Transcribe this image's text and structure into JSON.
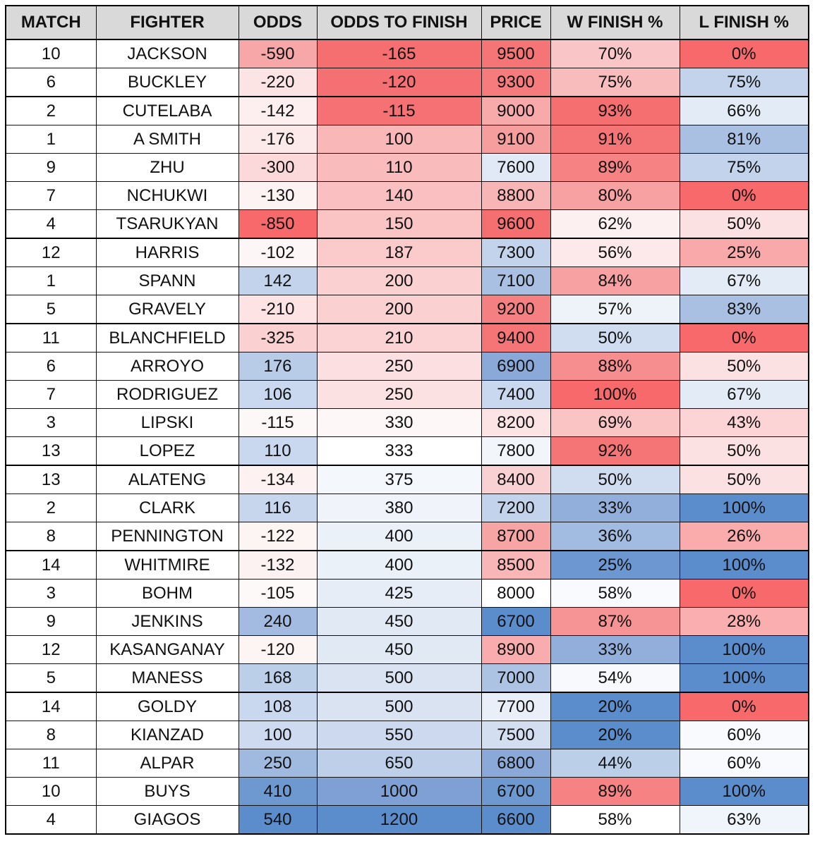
{
  "table": {
    "columns": [
      "MATCH",
      "FIGHTER",
      "ODDS",
      "ODDS TO FINISH",
      "PRICE",
      "W FINISH %",
      "L FINISH %"
    ],
    "rows": [
      [
        "10",
        "JACKSON",
        "-590",
        "-165",
        "9500",
        "70%",
        "0%"
      ],
      [
        "6",
        "BUCKLEY",
        "-220",
        "-120",
        "9300",
        "75%",
        "75%"
      ],
      [
        "2",
        "CUTELABA",
        "-142",
        "-115",
        "9000",
        "93%",
        "66%"
      ],
      [
        "1",
        "A SMITH",
        "-176",
        "100",
        "9100",
        "91%",
        "81%"
      ],
      [
        "9",
        "ZHU",
        "-300",
        "110",
        "7600",
        "89%",
        "75%"
      ],
      [
        "7",
        "NCHUKWI",
        "-130",
        "140",
        "8800",
        "80%",
        "0%"
      ],
      [
        "4",
        "TSARUKYAN",
        "-850",
        "150",
        "9600",
        "62%",
        "50%"
      ],
      [
        "12",
        "HARRIS",
        "-102",
        "187",
        "7300",
        "56%",
        "25%"
      ],
      [
        "1",
        "SPANN",
        "142",
        "200",
        "7100",
        "84%",
        "67%"
      ],
      [
        "5",
        "GRAVELY",
        "-210",
        "200",
        "9200",
        "57%",
        "83%"
      ],
      [
        "11",
        "BLANCHFIELD",
        "-325",
        "210",
        "9400",
        "50%",
        "0%"
      ],
      [
        "6",
        "ARROYO",
        "176",
        "250",
        "6900",
        "88%",
        "50%"
      ],
      [
        "7",
        "RODRIGUEZ",
        "106",
        "250",
        "7400",
        "100%",
        "67%"
      ],
      [
        "3",
        "LIPSKI",
        "-115",
        "330",
        "8200",
        "69%",
        "43%"
      ],
      [
        "13",
        "LOPEZ",
        "110",
        "333",
        "7800",
        "92%",
        "50%"
      ],
      [
        "13",
        "ALATENG",
        "-134",
        "375",
        "8400",
        "50%",
        "50%"
      ],
      [
        "2",
        "CLARK",
        "116",
        "380",
        "7200",
        "33%",
        "100%"
      ],
      [
        "8",
        "PENNINGTON",
        "-122",
        "400",
        "8700",
        "36%",
        "26%"
      ],
      [
        "14",
        "WHITMIRE",
        "-132",
        "400",
        "8500",
        "25%",
        "100%"
      ],
      [
        "3",
        "BOHM",
        "-105",
        "425",
        "8000",
        "58%",
        "0%"
      ],
      [
        "9",
        "JENKINS",
        "240",
        "450",
        "6700",
        "87%",
        "28%"
      ],
      [
        "12",
        "KASANGANAY",
        "-120",
        "450",
        "8900",
        "33%",
        "100%"
      ],
      [
        "5",
        "MANESS",
        "168",
        "500",
        "7000",
        "54%",
        "100%"
      ],
      [
        "14",
        "GOLDY",
        "108",
        "500",
        "7700",
        "20%",
        "0%"
      ],
      [
        "8",
        "KIANZAD",
        "100",
        "550",
        "7500",
        "20%",
        "60%"
      ],
      [
        "11",
        "ALPAR",
        "250",
        "650",
        "6800",
        "44%",
        "60%"
      ],
      [
        "10",
        "BUYS",
        "410",
        "1000",
        "6700",
        "89%",
        "100%"
      ],
      [
        "4",
        "GIAGOS",
        "540",
        "1200",
        "6600",
        "58%",
        "63%"
      ]
    ],
    "cell_colors": [
      [
        "#ffffff",
        "#ffffff",
        "#f8a7a8",
        "#f56e70",
        "#f57475",
        "#fac5c6",
        "#f8696b"
      ],
      [
        "#ffffff",
        "#ffffff",
        "#fce4e5",
        "#f57072",
        "#f57b7c",
        "#f9bcbd",
        "#c2d3eb"
      ],
      [
        "#ffffff",
        "#ffffff",
        "#fdeff0",
        "#f57173",
        "#f8a9aa",
        "#f56e70",
        "#e3ebf6"
      ],
      [
        "#ffffff",
        "#ffffff",
        "#fce9ea",
        "#f9b7b8",
        "#f69d9e",
        "#f57576",
        "#a9c0e2"
      ],
      [
        "#ffffff",
        "#ffffff",
        "#fbd8d9",
        "#f9bbbc",
        "#e1e9f6",
        "#f68284",
        "#c2d3eb"
      ],
      [
        "#ffffff",
        "#ffffff",
        "#fdf3f3",
        "#fac0c1",
        "#f8b5b6",
        "#f8a1a2",
        "#f8696b"
      ],
      [
        "#ffffff",
        "#ffffff",
        "#f8696b",
        "#fac3c4",
        "#f56e70",
        "#fdf0f1",
        "#fce1e2"
      ],
      [
        "#ffffff",
        "#ffffff",
        "#fdf6f6",
        "#fbcbcc",
        "#c2d3eb",
        "#fde9ea",
        "#faa9aa"
      ],
      [
        "#ffffff",
        "#ffffff",
        "#c2d3eb",
        "#fbd0d1",
        "#a9c0e2",
        "#f8a1a2",
        "#e3ebf6"
      ],
      [
        "#ffffff",
        "#ffffff",
        "#fde3e4",
        "#fbd0d1",
        "#f58081",
        "#eef2f9",
        "#a9c0e2"
      ],
      [
        "#ffffff",
        "#ffffff",
        "#fbd0d1",
        "#fbd3d4",
        "#f57475",
        "#d0dcf0",
        "#f8696b"
      ],
      [
        "#ffffff",
        "#ffffff",
        "#b8cce8",
        "#fcdfe0",
        "#8aa9d8",
        "#f68e90",
        "#fce1e2"
      ],
      [
        "#ffffff",
        "#ffffff",
        "#c9d8ee",
        "#fce1e2",
        "#c9d8ee",
        "#f8696b",
        "#e3ebf6"
      ],
      [
        "#ffffff",
        "#ffffff",
        "#fdf8f8",
        "#fef7f7",
        "#fce4e5",
        "#fac4c5",
        "#fcd4d5"
      ],
      [
        "#ffffff",
        "#ffffff",
        "#c9d8ee",
        "#ffffff",
        "#f2f6fb",
        "#f57576",
        "#fce1e2"
      ],
      [
        "#ffffff",
        "#ffffff",
        "#fdf1f2",
        "#f4f7fc",
        "#fad1d2",
        "#d0dcf0",
        "#fce1e2"
      ],
      [
        "#ffffff",
        "#ffffff",
        "#c8d6ed",
        "#f0f4fa",
        "#c2d3eb",
        "#92afdb",
        "#5b8ccc"
      ],
      [
        "#ffffff",
        "#ffffff",
        "#fdf4f4",
        "#ebf1f9",
        "#f7a4a5",
        "#a2bbe0",
        "#faacad"
      ],
      [
        "#ffffff",
        "#ffffff",
        "#fdf2f2",
        "#ebf1f9",
        "#f8b6b7",
        "#6d97d0",
        "#5b8ccc"
      ],
      [
        "#ffffff",
        "#ffffff",
        "#fdf9f9",
        "#e6edf7",
        "#ffffff",
        "#f8fafd",
        "#f8696b"
      ],
      [
        "#ffffff",
        "#ffffff",
        "#a3bbe0",
        "#e1e9f5",
        "#5b8ccc",
        "#f69394",
        "#faaeaf"
      ],
      [
        "#ffffff",
        "#ffffff",
        "#fdf4f4",
        "#e1e9f5",
        "#f8acad",
        "#92afdb",
        "#5b8ccc"
      ],
      [
        "#ffffff",
        "#ffffff",
        "#bccfe9",
        "#d9e3f2",
        "#acc3e3",
        "#f8f9fd",
        "#5b8ccc"
      ],
      [
        "#ffffff",
        "#ffffff",
        "#c9d8ee",
        "#d9e3f2",
        "#e9eff8",
        "#5b8ccc",
        "#f8696b"
      ],
      [
        "#ffffff",
        "#ffffff",
        "#cddaef",
        "#ccd9ef",
        "#d3def1",
        "#5b8ccc",
        "#f8fafd"
      ],
      [
        "#ffffff",
        "#ffffff",
        "#a0b9df",
        "#bdcfe9",
        "#8aa9d8",
        "#bccfe9",
        "#f8fafd"
      ],
      [
        "#ffffff",
        "#ffffff",
        "#6e98d0",
        "#7ea0d5",
        "#6e98d0",
        "#f68284",
        "#5b8ccc"
      ],
      [
        "#ffffff",
        "#ffffff",
        "#5b8ccc",
        "#5b8ccc",
        "#5b8ccc",
        "#ffffff",
        "#f0f4fb"
      ]
    ]
  }
}
